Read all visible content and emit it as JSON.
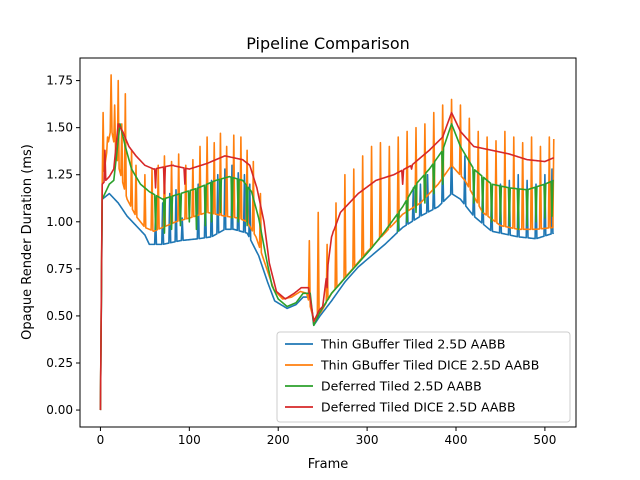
{
  "chart_data": {
    "type": "line",
    "title": "Pipeline Comparison",
    "xlabel": "Frame",
    "ylabel": "Opaque Render Duration (ms)",
    "xlim": [
      -23,
      535
    ],
    "ylim": [
      -0.09,
      1.87
    ],
    "xticks": [
      0,
      100,
      200,
      300,
      400,
      500
    ],
    "yticks": [
      0.0,
      0.25,
      0.5,
      0.75,
      1.0,
      1.25,
      1.5,
      1.75
    ],
    "ytick_labels": [
      "0.00",
      "0.25",
      "0.50",
      "0.75",
      "1.00",
      "1.25",
      "1.50",
      "1.75"
    ],
    "grid": false,
    "legend_position": "lower right",
    "series": [
      {
        "name": "Thin GBuffer Tiled 2.5D AABB",
        "color": "#1f77b4",
        "baseline": [
          [
            0,
            0.0
          ],
          [
            2,
            1.12
          ],
          [
            10,
            1.15
          ],
          [
            20,
            1.1
          ],
          [
            30,
            1.03
          ],
          [
            40,
            0.98
          ],
          [
            50,
            0.93
          ],
          [
            55,
            0.88
          ],
          [
            70,
            0.88
          ],
          [
            90,
            0.9
          ],
          [
            110,
            0.91
          ],
          [
            125,
            0.92
          ],
          [
            140,
            0.96
          ],
          [
            150,
            0.96
          ],
          [
            165,
            0.94
          ],
          [
            178,
            0.82
          ],
          [
            188,
            0.68
          ],
          [
            196,
            0.58
          ],
          [
            210,
            0.54
          ],
          [
            220,
            0.56
          ],
          [
            228,
            0.6
          ],
          [
            236,
            0.6
          ],
          [
            240,
            0.45
          ],
          [
            247,
            0.5
          ],
          [
            260,
            0.58
          ],
          [
            275,
            0.68
          ],
          [
            290,
            0.76
          ],
          [
            305,
            0.82
          ],
          [
            320,
            0.88
          ],
          [
            340,
            0.97
          ],
          [
            360,
            1.03
          ],
          [
            380,
            1.08
          ],
          [
            395,
            1.15
          ],
          [
            405,
            1.12
          ],
          [
            420,
            1.03
          ],
          [
            440,
            0.95
          ],
          [
            470,
            0.92
          ],
          [
            490,
            0.91
          ],
          [
            510,
            0.94
          ]
        ],
        "spikes": [
          [
            62,
            1.05
          ],
          [
            70,
            1.1
          ],
          [
            78,
            1.15
          ],
          [
            85,
            1.17
          ],
          [
            92,
            1.02
          ],
          [
            110,
            1.2
          ],
          [
            118,
            1.18
          ],
          [
            125,
            1.22
          ],
          [
            132,
            1.25
          ],
          [
            140,
            1.28
          ],
          [
            148,
            1.3
          ],
          [
            155,
            1.26
          ],
          [
            162,
            1.25
          ],
          [
            168,
            1.2
          ],
          [
            335,
            1.1
          ],
          [
            345,
            1.15
          ],
          [
            352,
            1.18
          ],
          [
            360,
            1.2
          ],
          [
            368,
            1.25
          ],
          [
            375,
            1.28
          ],
          [
            385,
            1.35
          ],
          [
            395,
            1.4
          ],
          [
            410,
            1.35
          ],
          [
            420,
            1.25
          ],
          [
            430,
            1.22
          ],
          [
            440,
            1.18
          ],
          [
            450,
            1.2
          ],
          [
            460,
            1.22
          ],
          [
            470,
            1.25
          ],
          [
            480,
            1.22
          ],
          [
            490,
            1.2
          ],
          [
            500,
            1.25
          ],
          [
            508,
            1.28
          ]
        ]
      },
      {
        "name": "Thin GBuffer Tiled DICE 2.5D AABB",
        "color": "#ff7f0e",
        "baseline": [
          [
            0,
            0.0
          ],
          [
            2,
            1.2
          ],
          [
            8,
            1.4
          ],
          [
            12,
            1.5
          ],
          [
            20,
            1.3
          ],
          [
            30,
            1.12
          ],
          [
            40,
            1.03
          ],
          [
            50,
            0.97
          ],
          [
            60,
            0.95
          ],
          [
            70,
            0.97
          ],
          [
            85,
            1.0
          ],
          [
            100,
            1.02
          ],
          [
            120,
            1.05
          ],
          [
            140,
            1.03
          ],
          [
            155,
            1.02
          ],
          [
            165,
            1.0
          ],
          [
            175,
            0.92
          ],
          [
            185,
            0.78
          ],
          [
            195,
            0.64
          ],
          [
            205,
            0.59
          ],
          [
            215,
            0.6
          ],
          [
            225,
            0.63
          ],
          [
            232,
            0.62
          ],
          [
            240,
            0.48
          ],
          [
            248,
            0.52
          ],
          [
            260,
            0.62
          ],
          [
            280,
            0.73
          ],
          [
            300,
            0.84
          ],
          [
            320,
            0.94
          ],
          [
            340,
            1.04
          ],
          [
            360,
            1.1
          ],
          [
            380,
            1.2
          ],
          [
            395,
            1.3
          ],
          [
            410,
            1.22
          ],
          [
            430,
            1.05
          ],
          [
            450,
            0.98
          ],
          [
            470,
            0.96
          ],
          [
            490,
            0.96
          ],
          [
            510,
            0.97
          ]
        ],
        "spikes": [
          [
            3,
            1.58
          ],
          [
            8,
            1.45
          ],
          [
            12,
            1.78
          ],
          [
            16,
            1.62
          ],
          [
            20,
            1.75
          ],
          [
            24,
            1.52
          ],
          [
            28,
            1.68
          ],
          [
            35,
            1.38
          ],
          [
            40,
            1.3
          ],
          [
            50,
            1.25
          ],
          [
            58,
            1.28
          ],
          [
            65,
            1.3
          ],
          [
            72,
            1.35
          ],
          [
            80,
            1.32
          ],
          [
            88,
            1.36
          ],
          [
            96,
            1.3
          ],
          [
            104,
            1.33
          ],
          [
            112,
            1.4
          ],
          [
            120,
            1.45
          ],
          [
            128,
            1.42
          ],
          [
            135,
            1.47
          ],
          [
            142,
            1.4
          ],
          [
            150,
            1.46
          ],
          [
            158,
            1.45
          ],
          [
            165,
            1.38
          ],
          [
            172,
            1.32
          ],
          [
            180,
            1.15
          ],
          [
            235,
            0.9
          ],
          [
            245,
            1.05
          ],
          [
            255,
            0.88
          ],
          [
            265,
            1.1
          ],
          [
            275,
            1.25
          ],
          [
            285,
            1.28
          ],
          [
            295,
            1.35
          ],
          [
            305,
            1.4
          ],
          [
            315,
            1.42
          ],
          [
            325,
            1.4
          ],
          [
            335,
            1.45
          ],
          [
            345,
            1.48
          ],
          [
            355,
            1.5
          ],
          [
            365,
            1.52
          ],
          [
            375,
            1.58
          ],
          [
            385,
            1.62
          ],
          [
            395,
            1.65
          ],
          [
            405,
            1.62
          ],
          [
            415,
            1.55
          ],
          [
            425,
            1.48
          ],
          [
            435,
            1.45
          ],
          [
            445,
            1.43
          ],
          [
            455,
            1.48
          ],
          [
            465,
            1.45
          ],
          [
            475,
            1.42
          ],
          [
            485,
            1.45
          ],
          [
            495,
            1.4
          ],
          [
            505,
            1.45
          ],
          [
            510,
            1.44
          ]
        ]
      },
      {
        "name": "Deferred Tiled 2.5D AABB",
        "color": "#2ca02c",
        "baseline": [
          [
            0,
            0.0
          ],
          [
            2,
            1.12
          ],
          [
            10,
            1.2
          ],
          [
            15,
            1.22
          ],
          [
            22,
            1.52
          ],
          [
            28,
            1.4
          ],
          [
            35,
            1.28
          ],
          [
            45,
            1.2
          ],
          [
            55,
            1.16
          ],
          [
            70,
            1.12
          ],
          [
            90,
            1.15
          ],
          [
            110,
            1.18
          ],
          [
            130,
            1.22
          ],
          [
            145,
            1.24
          ],
          [
            160,
            1.22
          ],
          [
            170,
            1.16
          ],
          [
            178,
            1.02
          ],
          [
            186,
            0.82
          ],
          [
            193,
            0.66
          ],
          [
            200,
            0.59
          ],
          [
            210,
            0.55
          ],
          [
            220,
            0.57
          ],
          [
            228,
            0.62
          ],
          [
            236,
            0.62
          ],
          [
            240,
            0.45
          ],
          [
            247,
            0.52
          ],
          [
            260,
            0.62
          ],
          [
            275,
            0.7
          ],
          [
            290,
            0.78
          ],
          [
            305,
            0.86
          ],
          [
            320,
            0.95
          ],
          [
            340,
            1.08
          ],
          [
            355,
            1.2
          ],
          [
            370,
            1.28
          ],
          [
            385,
            1.38
          ],
          [
            395,
            1.52
          ],
          [
            405,
            1.4
          ],
          [
            420,
            1.28
          ],
          [
            440,
            1.2
          ],
          [
            460,
            1.18
          ],
          [
            480,
            1.17
          ],
          [
            500,
            1.2
          ],
          [
            510,
            1.22
          ]
        ],
        "spikes": [
          [
            62,
            0.96
          ],
          [
            72,
            0.94
          ],
          [
            80,
            0.96
          ],
          [
            90,
            0.98
          ],
          [
            100,
            1.0
          ],
          [
            108,
            0.96
          ],
          [
            118,
            0.98
          ],
          [
            125,
            1.0
          ],
          [
            135,
            1.05
          ],
          [
            148,
            1.02
          ],
          [
            155,
            1.0
          ],
          [
            165,
            0.98
          ],
          [
            335,
            0.95
          ],
          [
            345,
            1.0
          ],
          [
            355,
            1.05
          ],
          [
            365,
            1.1
          ],
          [
            375,
            1.15
          ],
          [
            385,
            1.2
          ],
          [
            420,
            1.1
          ],
          [
            430,
            1.05
          ],
          [
            440,
            1.0
          ],
          [
            450,
            1.0
          ],
          [
            460,
            0.98
          ],
          [
            470,
            0.96
          ],
          [
            480,
            0.98
          ],
          [
            490,
            1.0
          ],
          [
            500,
            1.02
          ],
          [
            508,
            1.03
          ]
        ]
      },
      {
        "name": "Deferred Tiled DICE 2.5D AABB",
        "color": "#d62728",
        "baseline": [
          [
            0,
            0.0
          ],
          [
            2,
            1.2
          ],
          [
            10,
            1.24
          ],
          [
            15,
            1.28
          ],
          [
            20,
            1.52
          ],
          [
            25,
            1.48
          ],
          [
            32,
            1.4
          ],
          [
            40,
            1.35
          ],
          [
            50,
            1.3
          ],
          [
            60,
            1.28
          ],
          [
            80,
            1.3
          ],
          [
            100,
            1.28
          ],
          [
            120,
            1.31
          ],
          [
            140,
            1.35
          ],
          [
            160,
            1.33
          ],
          [
            168,
            1.3
          ],
          [
            176,
            1.18
          ],
          [
            184,
            1.0
          ],
          [
            190,
            0.78
          ],
          [
            198,
            0.63
          ],
          [
            208,
            0.59
          ],
          [
            218,
            0.62
          ],
          [
            226,
            0.65
          ],
          [
            234,
            0.65
          ],
          [
            240,
            0.47
          ],
          [
            246,
            0.53
          ],
          [
            250,
            0.55
          ],
          [
            260,
            0.92
          ],
          [
            270,
            1.05
          ],
          [
            290,
            1.15
          ],
          [
            310,
            1.22
          ],
          [
            330,
            1.25
          ],
          [
            350,
            1.3
          ],
          [
            370,
            1.38
          ],
          [
            385,
            1.45
          ],
          [
            395,
            1.58
          ],
          [
            405,
            1.48
          ],
          [
            420,
            1.4
          ],
          [
            440,
            1.38
          ],
          [
            460,
            1.36
          ],
          [
            480,
            1.33
          ],
          [
            500,
            1.32
          ],
          [
            510,
            1.34
          ]
        ],
        "spikes": [
          [
            5,
            1.38
          ],
          [
            62,
            1.18
          ],
          [
            72,
            1.15
          ],
          [
            82,
            1.3
          ],
          [
            95,
            1.2
          ],
          [
            255,
            0.65
          ],
          [
            262,
            0.95
          ],
          [
            340,
            1.2
          ],
          [
            350,
            1.28
          ]
        ]
      }
    ]
  }
}
